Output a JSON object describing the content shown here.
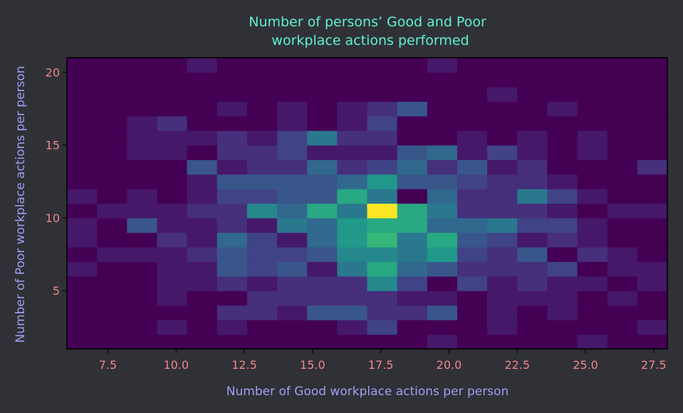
{
  "chart_data": {
    "type": "heatmap",
    "title_line1": "Number of persons’ Good and Poor",
    "title_line2": "workplace actions performed",
    "xlabel": "Number of Good workplace actions per person",
    "ylabel": "Number of Poor workplace actions per person",
    "xlim": [
      6,
      28
    ],
    "ylim": [
      1,
      21
    ],
    "x_ticks": [
      7.5,
      10.0,
      12.5,
      15.0,
      17.5,
      20.0,
      22.5,
      25.0,
      27.5
    ],
    "x_tick_labels": [
      "7.5",
      "10.0",
      "12.5",
      "15.0",
      "17.5",
      "20.0",
      "22.5",
      "25.0",
      "27.5"
    ],
    "y_ticks": [
      5,
      10,
      15,
      20
    ],
    "y_tick_labels": [
      "5",
      "10",
      "15",
      "20"
    ],
    "x_bin_edges": [
      6.0,
      7.1,
      8.2,
      9.3,
      10.4,
      11.5,
      12.6,
      13.7,
      14.8,
      15.9,
      17.0,
      18.1,
      19.2,
      20.3,
      21.4,
      22.5,
      23.6,
      24.7,
      25.8,
      26.9,
      28.0
    ],
    "y_bin_edges": [
      1,
      2,
      3,
      4,
      5,
      6,
      7,
      8,
      9,
      10,
      11,
      12,
      13,
      14,
      15,
      16,
      17,
      18,
      19,
      20,
      21
    ],
    "counts": [
      [
        0,
        0,
        0,
        0,
        0,
        0,
        0,
        0,
        0,
        0,
        0,
        0,
        1,
        0,
        0,
        0,
        0,
        1,
        0,
        0
      ],
      [
        0,
        0,
        0,
        1,
        0,
        1,
        0,
        0,
        0,
        1,
        3,
        0,
        0,
        0,
        1,
        0,
        0,
        0,
        0,
        1
      ],
      [
        0,
        0,
        0,
        0,
        0,
        2,
        2,
        1,
        4,
        4,
        2,
        2,
        4,
        0,
        1,
        0,
        1,
        0,
        0,
        0
      ],
      [
        0,
        0,
        0,
        1,
        0,
        0,
        2,
        2,
        2,
        2,
        2,
        1,
        1,
        0,
        1,
        1,
        1,
        0,
        1,
        0
      ],
      [
        0,
        0,
        0,
        1,
        1,
        2,
        1,
        2,
        2,
        2,
        7,
        3,
        0,
        3,
        1,
        2,
        1,
        1,
        0,
        1
      ],
      [
        1,
        0,
        0,
        1,
        1,
        4,
        3,
        4,
        1,
        6,
        9,
        5,
        4,
        2,
        2,
        2,
        3,
        0,
        1,
        1
      ],
      [
        0,
        1,
        1,
        1,
        2,
        4,
        3,
        3,
        4,
        7,
        7,
        6,
        8,
        3,
        2,
        4,
        0,
        2,
        1,
        0
      ],
      [
        1,
        0,
        0,
        2,
        1,
        5,
        3,
        1,
        5,
        8,
        10,
        6,
        9,
        4,
        3,
        1,
        2,
        1,
        0,
        0
      ],
      [
        1,
        0,
        4,
        1,
        1,
        2,
        1,
        6,
        5,
        8,
        9,
        9,
        5,
        5,
        6,
        3,
        3,
        1,
        0,
        0
      ],
      [
        0,
        1,
        1,
        1,
        2,
        2,
        7,
        5,
        9,
        6,
        15,
        9,
        6,
        2,
        2,
        2,
        1,
        0,
        1,
        1
      ],
      [
        1,
        0,
        1,
        0,
        1,
        3,
        3,
        4,
        4,
        9,
        6,
        0,
        5,
        2,
        2,
        6,
        3,
        1,
        0,
        0
      ],
      [
        0,
        0,
        0,
        0,
        1,
        4,
        4,
        4,
        4,
        5,
        8,
        4,
        4,
        3,
        2,
        2,
        1,
        0,
        0,
        0
      ],
      [
        0,
        0,
        0,
        0,
        4,
        1,
        2,
        2,
        5,
        2,
        3,
        5,
        2,
        4,
        1,
        2,
        0,
        0,
        0,
        2
      ],
      [
        0,
        0,
        1,
        1,
        0,
        2,
        2,
        3,
        1,
        1,
        1,
        4,
        5,
        1,
        3,
        1,
        0,
        1,
        0,
        0
      ],
      [
        0,
        0,
        1,
        1,
        1,
        2,
        1,
        3,
        6,
        2,
        2,
        0,
        0,
        1,
        0,
        1,
        0,
        1,
        0,
        0
      ],
      [
        0,
        0,
        1,
        2,
        0,
        0,
        0,
        1,
        0,
        1,
        3,
        0,
        0,
        0,
        0,
        0,
        0,
        0,
        0,
        0
      ],
      [
        0,
        0,
        0,
        0,
        0,
        1,
        0,
        1,
        0,
        1,
        2,
        4,
        0,
        0,
        0,
        0,
        1,
        0,
        0,
        0
      ],
      [
        0,
        0,
        0,
        0,
        0,
        0,
        0,
        0,
        0,
        0,
        0,
        0,
        0,
        0,
        1,
        0,
        0,
        0,
        0,
        0
      ],
      [
        0,
        0,
        0,
        0,
        0,
        0,
        0,
        0,
        0,
        0,
        0,
        0,
        0,
        0,
        0,
        0,
        0,
        0,
        0,
        0
      ],
      [
        0,
        0,
        0,
        0,
        1,
        0,
        0,
        0,
        0,
        0,
        0,
        0,
        1,
        0,
        0,
        0,
        0,
        0,
        0,
        0
      ]
    ],
    "colormap": "viridis",
    "grid": false,
    "colors": {
      "background": "#303136",
      "title": "#5ff2cf",
      "axis_label": "#9f9ff5",
      "tick_label": "#f0868e",
      "axes_frame": "#000000"
    }
  }
}
